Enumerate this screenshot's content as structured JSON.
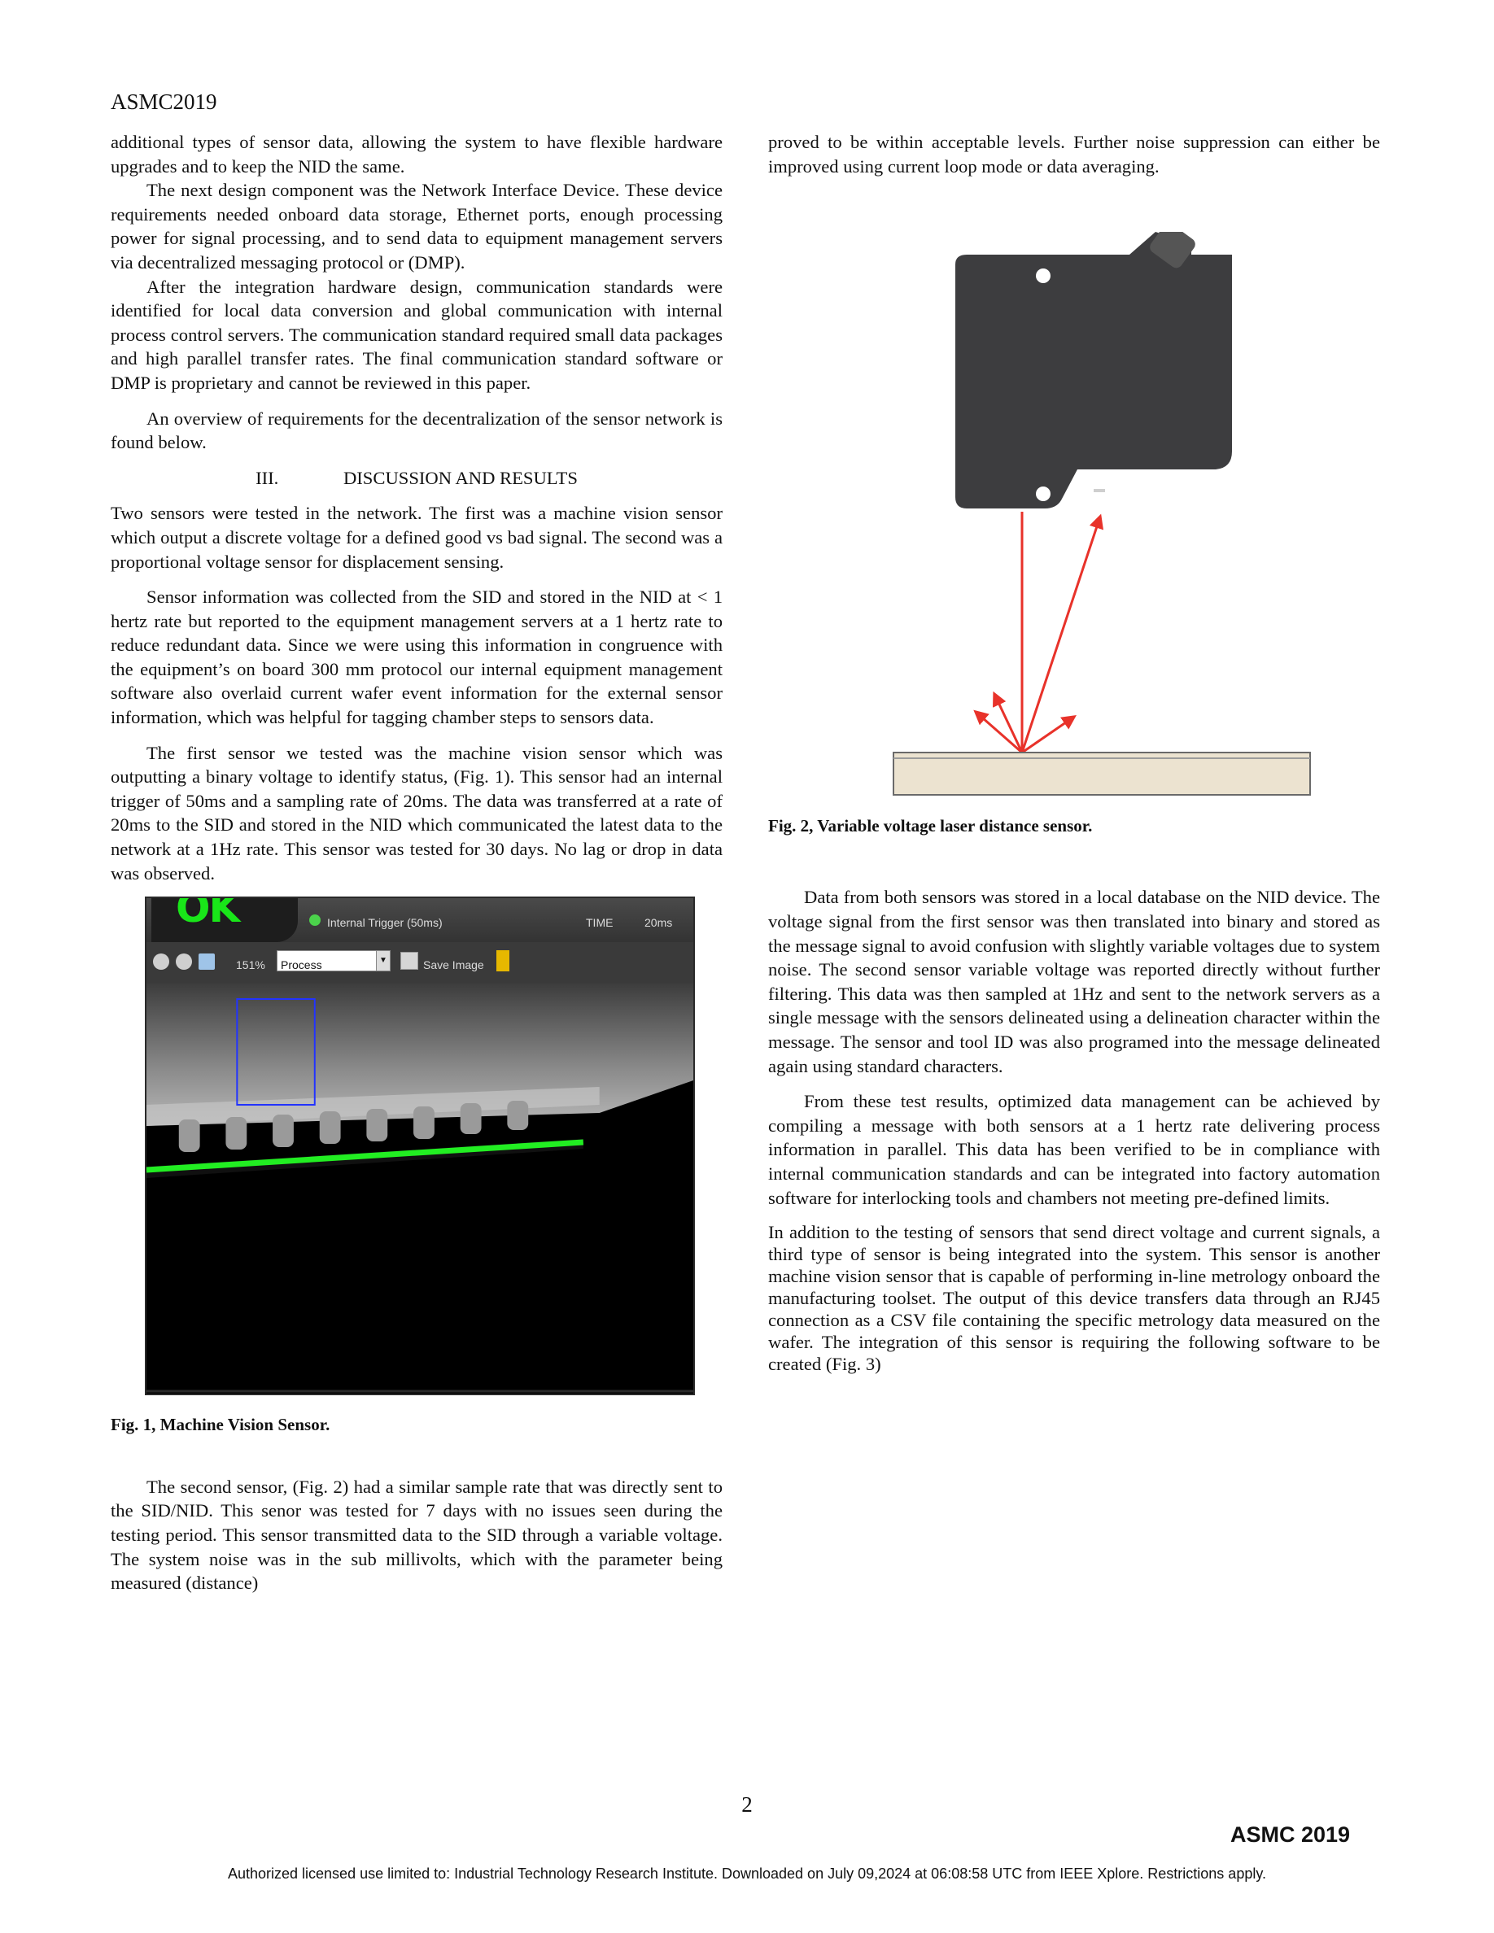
{
  "header": {
    "conference": "ASMC2019"
  },
  "left_column": {
    "paragraphs_top": [
      {
        "text": "additional types of sensor data, allowing the system to have flexible hardware upgrades and to keep the NID the same."
      },
      {
        "text": "The next design component was the Network Interface Device. These device requirements needed onboard data storage, Ethernet ports, enough processing power for signal processing, and to send data to equipment management servers via decentralized messaging protocol or (DMP)."
      },
      {
        "text": "After the integration hardware design, communication standards were identified for local data conversion and global communication with internal process control servers. The communication standard required small data packages and high parallel transfer rates. The final communication standard software or DMP is proprietary and cannot be reviewed in this paper."
      },
      {
        "text": "An overview of requirements for the decentralization of the sensor network is found below."
      }
    ],
    "section_heading": {
      "number": "III.",
      "title": "DISCUSSION AND RESULTS"
    },
    "paragraphs_mid": [
      {
        "text": "Two sensors were tested in the network. The first was a machine vision sensor which output a discrete voltage for a defined good vs bad signal. The second was a proportional voltage sensor for displacement sensing."
      },
      {
        "text": "Sensor information was collected from the SID and stored in the NID at < 1 hertz rate but reported to the equipment management servers at a 1 hertz rate to reduce redundant data. Since we were using this information in congruence with the equipment’s on board 300 mm protocol our internal equipment management software also overlaid current wafer event information for the external sensor information, which was helpful for tagging chamber steps to sensors data."
      },
      {
        "text": "The first sensor we tested was the machine vision sensor which was outputting a binary voltage to identify status, (Fig. 1). This sensor had an internal trigger of 50ms and a sampling rate of 20ms. The data was transferred at a rate of 20ms to the SID and stored in the NID which communicated the latest data to the network at a 1Hz rate. This sensor was tested for 30 days. No lag or drop in data was observed."
      }
    ],
    "figure1": {
      "status": "OK",
      "trigger_label": "Internal Trigger (50ms)",
      "time_label": "TIME",
      "time_value": "20ms",
      "zoom_label": "151%",
      "process_select": "Process",
      "save_label": "Save Image",
      "caption": "Fig. 1,  Machine Vision Sensor."
    },
    "paragraphs_bottom": [
      {
        "text": "The second sensor, (Fig. 2) had a similar sample rate that was directly sent to the SID/NID. This senor was tested for 7 days with no issues seen during the testing period. This sensor transmitted data to the SID through a variable voltage. The system noise was in the sub millivolts, which with the parameter being measured (distance)"
      }
    ]
  },
  "right_column": {
    "paragraphs_top": [
      {
        "text": "proved to be within acceptable levels. Further noise suppression can either be improved using current loop mode or data averaging."
      }
    ],
    "figure2": {
      "caption": "Fig. 2,  Variable voltage laser distance sensor."
    },
    "paragraphs_bottom": [
      {
        "text": "Data from both sensors was stored in a local database on the NID device. The voltage signal from the first sensor was then translated into binary and stored as the message signal to avoid confusion with slightly variable voltages due to system noise. The second sensor variable voltage was reported directly without further filtering. This data was then sampled at 1Hz and sent to the network servers as a single message with the sensors delineated using a delineation character within the message. The sensor and tool ID was also programed into the message delineated again using standard characters."
      },
      {
        "text": "From these test results, optimized data management can be achieved by compiling a message with both sensors at a 1 hertz rate delivering process information in parallel. This data has been verified to be in compliance with internal communication standards and can be integrated into factory automation software for interlocking tools and chambers not meeting pre-defined limits."
      },
      {
        "text": "In addition to the testing of sensors that send direct voltage and current signals, a third type of sensor is being integrated into the system. This sensor is another machine vision sensor that is capable of performing in-line metrology onboard the manufacturing toolset. The output of this device transfers data through an RJ45 connection as a CSV file containing the specific metrology data measured on the wafer. The integration of this sensor is requiring the following software to be created (Fig. 3)"
      }
    ]
  },
  "footer": {
    "page_number": "2",
    "conference_logo": "ASMC 2019",
    "license": "Authorized licensed use limited to: Industrial Technology Research Institute. Downloaded on July 09,2024 at 06:08:58 UTC from IEEE Xplore.  Restrictions apply."
  },
  "colors": {
    "laser_red": "#e8322a",
    "ok_green": "#19e619",
    "edge_green": "#22ee22",
    "roi_blue": "#2233ff",
    "sensor_body": "#3d3d3f",
    "surface": "#ece3d0"
  },
  "icons": [
    "zoom-out-icon",
    "zoom-in-icon",
    "fit-icon",
    "save-image-icon",
    "flag-icon"
  ]
}
